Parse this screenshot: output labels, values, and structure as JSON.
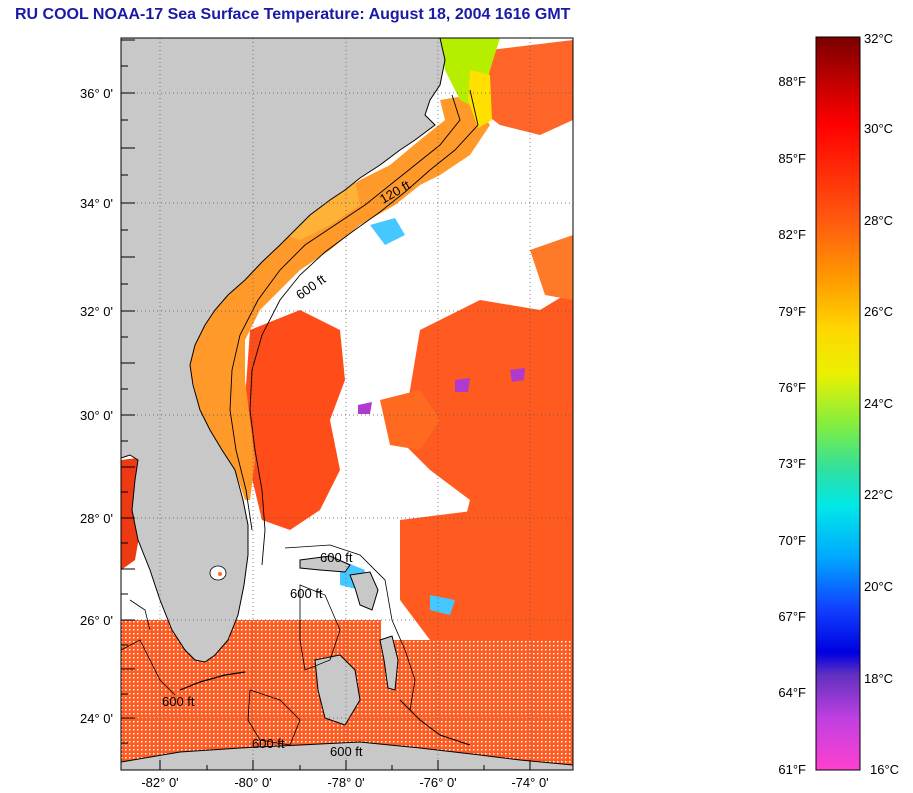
{
  "title": "RU COOL  NOAA-17  Sea Surface Temperature:  August 18, 2004 1616 GMT",
  "map": {
    "lat_labels": [
      "36° 0'",
      "34° 0'",
      "32° 0'",
      "30° 0'",
      "28° 0'",
      "26° 0'",
      "24° 0'"
    ],
    "lon_labels": [
      "-82° 0'",
      "-80° 0'",
      "-78° 0'",
      "-76° 0'",
      "-74° 0'"
    ],
    "isobath_labels": [
      "120 ft",
      "600 ft",
      "600 ft",
      "600 ft",
      "600 ft",
      "600 ft",
      "600 ft"
    ],
    "colors": {
      "land": "#c8c8c8",
      "cloud": "#ffffff",
      "warm": "#ff4a1a",
      "shelf": "#ff9a2a",
      "cool": "#b8f000"
    }
  },
  "colorbar": {
    "celsius": [
      "32°C",
      "30°C",
      "28°C",
      "26°C",
      "24°C",
      "22°C",
      "20°C",
      "18°C",
      "16°C"
    ],
    "fahrenheit": [
      "88°F",
      "85°F",
      "82°F",
      "79°F",
      "76°F",
      "73°F",
      "70°F",
      "67°F",
      "64°F",
      "61°F"
    ]
  }
}
